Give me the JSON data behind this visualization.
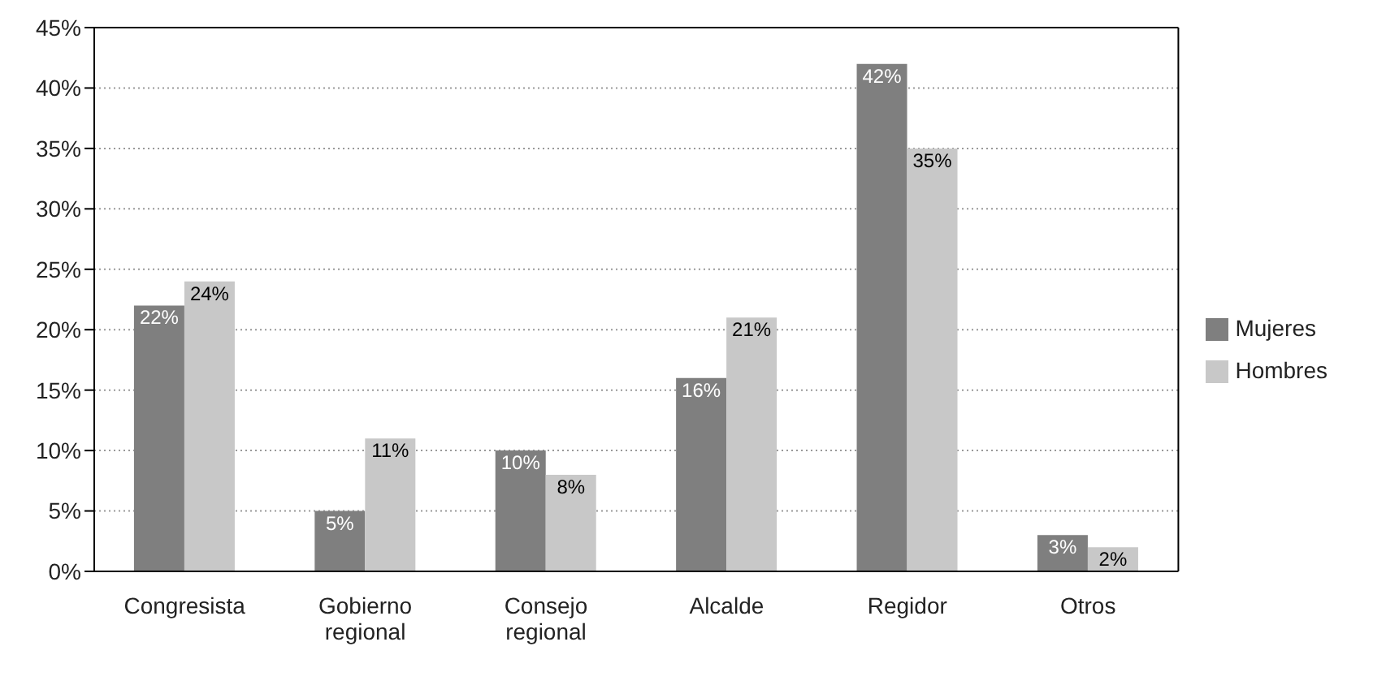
{
  "chart_data": {
    "type": "bar",
    "categories": [
      "Congresista",
      "Gobierno regional",
      "Consejo regional",
      "Alcalde",
      "Regidor",
      "Otros"
    ],
    "series": [
      {
        "name": "Mujeres",
        "color": "#7f7f7f",
        "values": [
          22,
          5,
          10,
          16,
          42,
          3
        ],
        "value_labels": [
          "22%",
          "5%",
          "10%",
          "16%",
          "42%",
          "3%"
        ]
      },
      {
        "name": "Hombres",
        "color": "#c8c8c8",
        "values": [
          24,
          11,
          8,
          21,
          35,
          2
        ],
        "value_labels": [
          "24%",
          "11%",
          "8%",
          "21%",
          "35%",
          "2%"
        ]
      }
    ],
    "ylim": [
      0,
      45
    ],
    "yticks": [
      {
        "value": 0,
        "label": "0%"
      },
      {
        "value": 5,
        "label": "5%"
      },
      {
        "value": 10,
        "label": "10%"
      },
      {
        "value": 15,
        "label": "15%"
      },
      {
        "value": 20,
        "label": "20%"
      },
      {
        "value": 25,
        "label": "25%"
      },
      {
        "value": 30,
        "label": "30%"
      },
      {
        "value": 35,
        "label": "35%"
      },
      {
        "value": 40,
        "label": "40%"
      },
      {
        "value": 45,
        "label": "45%"
      }
    ],
    "grid": "y",
    "legend": "right"
  }
}
